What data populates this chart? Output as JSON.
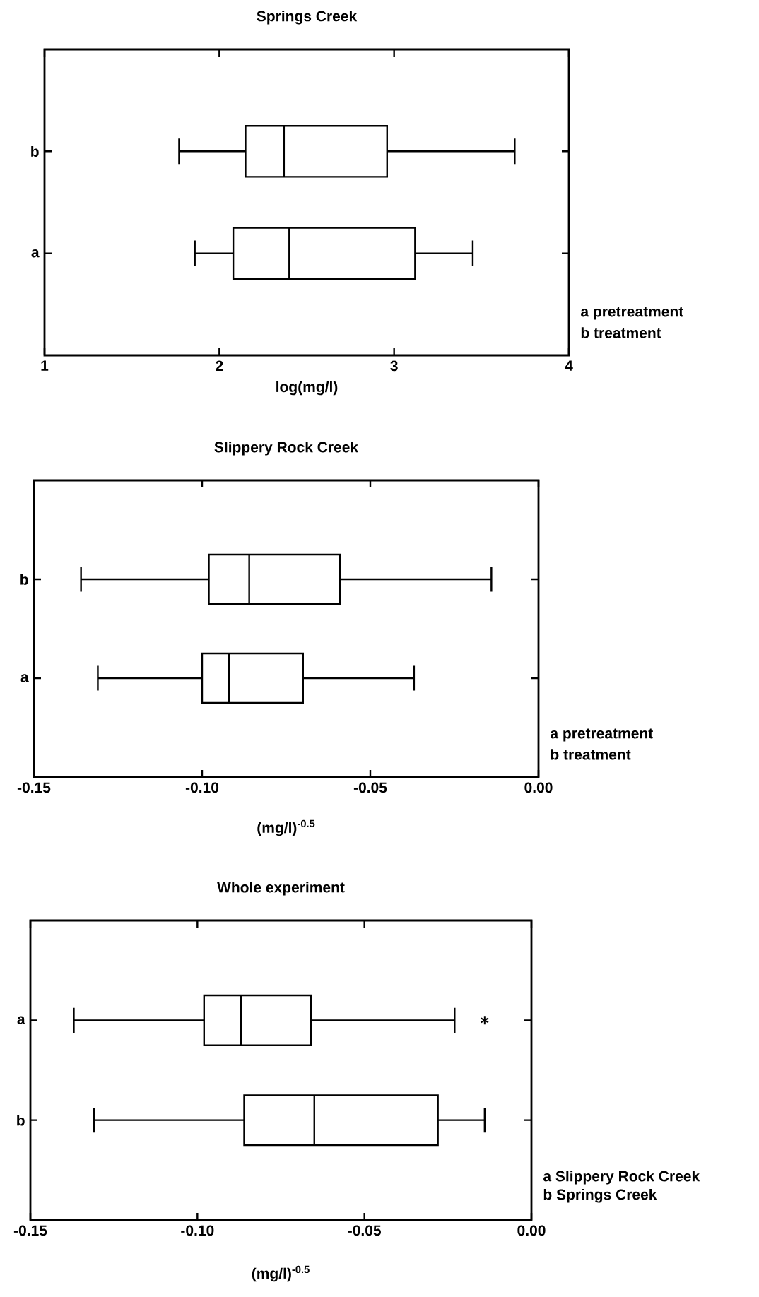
{
  "chart_data": [
    {
      "type": "box",
      "orientation": "horizontal",
      "title": "Springs Creek",
      "xlabel": "log(mg/l)",
      "categories": [
        "b",
        "a"
      ],
      "boxes": [
        {
          "low": 1.77,
          "q1": 2.15,
          "median": 2.37,
          "q3": 2.96,
          "high": 3.69
        },
        {
          "low": 1.86,
          "q1": 2.08,
          "median": 2.4,
          "q3": 3.12,
          "high": 3.45
        }
      ],
      "xlim": [
        1,
        4
      ],
      "xticks": [
        1,
        2,
        3,
        4
      ],
      "annotations": [
        "a  pretreatment",
        "b  treatment"
      ]
    },
    {
      "type": "box",
      "orientation": "horizontal",
      "title": "Slippery Rock Creek",
      "xlabel": "(mg/l)$^{-0.5}$",
      "categories": [
        "b",
        "a"
      ],
      "boxes": [
        {
          "low": -0.136,
          "q1": -0.098,
          "median": -0.086,
          "q3": -0.059,
          "high": -0.014
        },
        {
          "low": -0.131,
          "q1": -0.1,
          "median": -0.092,
          "q3": -0.07,
          "high": -0.037
        }
      ],
      "xlim": [
        -0.15,
        0
      ],
      "xticks": [
        {
          "value": -0.15,
          "label": "-0.15"
        },
        {
          "value": -0.1,
          "label": "-0.10"
        },
        {
          "value": -0.05,
          "label": "-0.05"
        },
        {
          "value": 0,
          "label": "0.00"
        }
      ],
      "annotations": [
        "a  pretreatment",
        "b  treatment"
      ]
    },
    {
      "type": "box",
      "orientation": "horizontal",
      "title": "Whole experiment",
      "xlabel": "(mg/l)$^{-0.5}$",
      "categories": [
        "a",
        "b"
      ],
      "boxes": [
        {
          "low": -0.137,
          "q1": -0.098,
          "median": -0.087,
          "q3": -0.066,
          "high": -0.023,
          "outliers": [
            -0.014
          ]
        },
        {
          "low": -0.131,
          "q1": -0.086,
          "median": -0.065,
          "q3": -0.028,
          "high": -0.014
        }
      ],
      "xlim": [
        -0.15,
        0
      ],
      "xticks": [
        {
          "value": -0.15,
          "label": "-0.15"
        },
        {
          "value": -0.1,
          "label": "-0.10"
        },
        {
          "value": -0.05,
          "label": "-0.05"
        },
        {
          "value": 0,
          "label": "0.00"
        }
      ],
      "annotations": [
        "a  Slippery Rock Creek",
        "b  Springs Creek"
      ]
    }
  ]
}
